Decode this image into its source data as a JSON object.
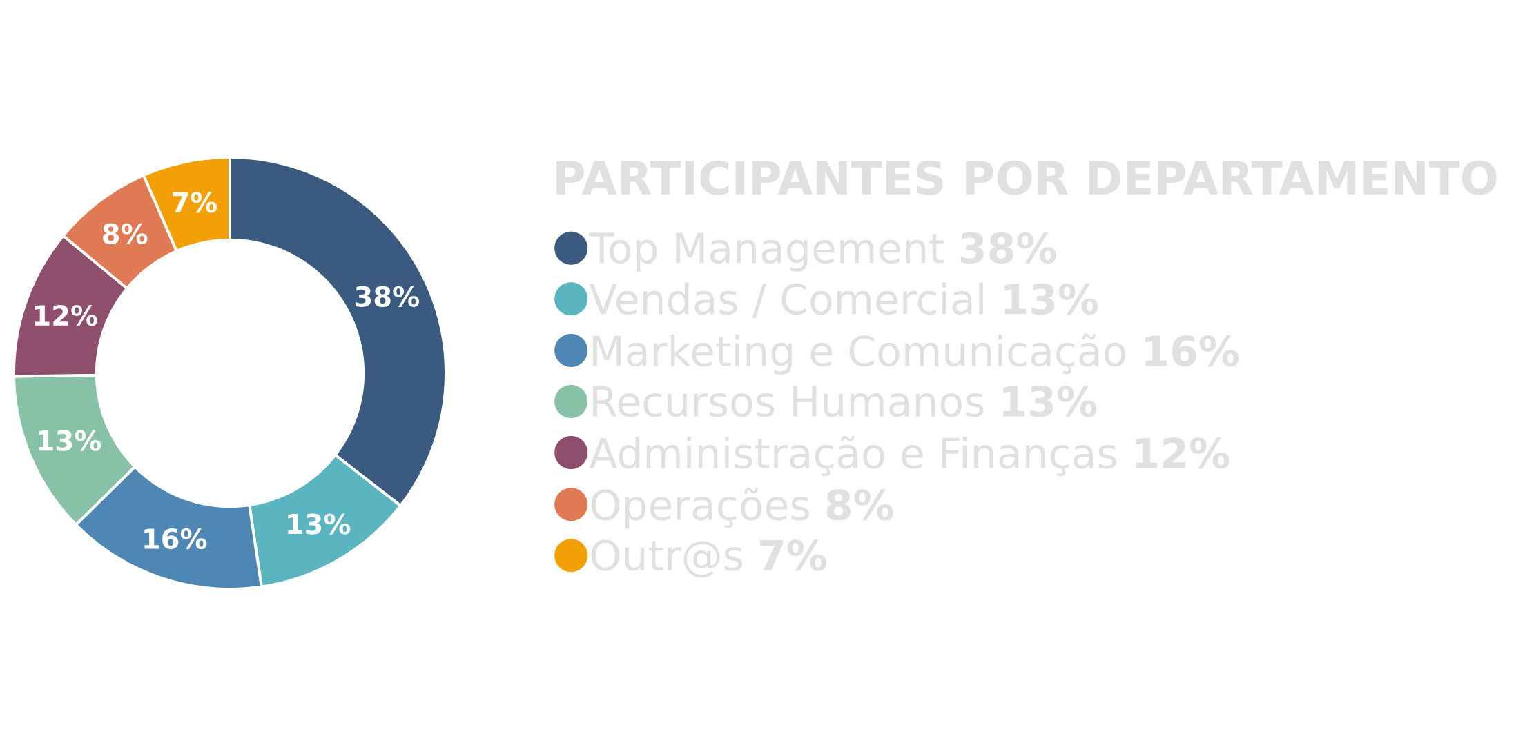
{
  "chart_data": {
    "type": "donut",
    "title": "PARTICIPANTES POR DEPARTAMENTO",
    "categories": [
      "Top Management",
      "Vendas / Comercial",
      "Marketing e Comunicação",
      "Recursos Humanos",
      "Administração e Finanças",
      "Operações",
      "Outr@s"
    ],
    "values": [
      38,
      13,
      16,
      13,
      12,
      8,
      7
    ],
    "value_labels": [
      "38%",
      "13%",
      "16%",
      "13%",
      "12%",
      "8%",
      "7%"
    ],
    "colors": [
      "#3b5a7f",
      "#5ab5c1",
      "#4f87b4",
      "#87c2a6",
      "#8d4f6c",
      "#e07a55",
      "#f3a007"
    ],
    "legend": "right"
  }
}
